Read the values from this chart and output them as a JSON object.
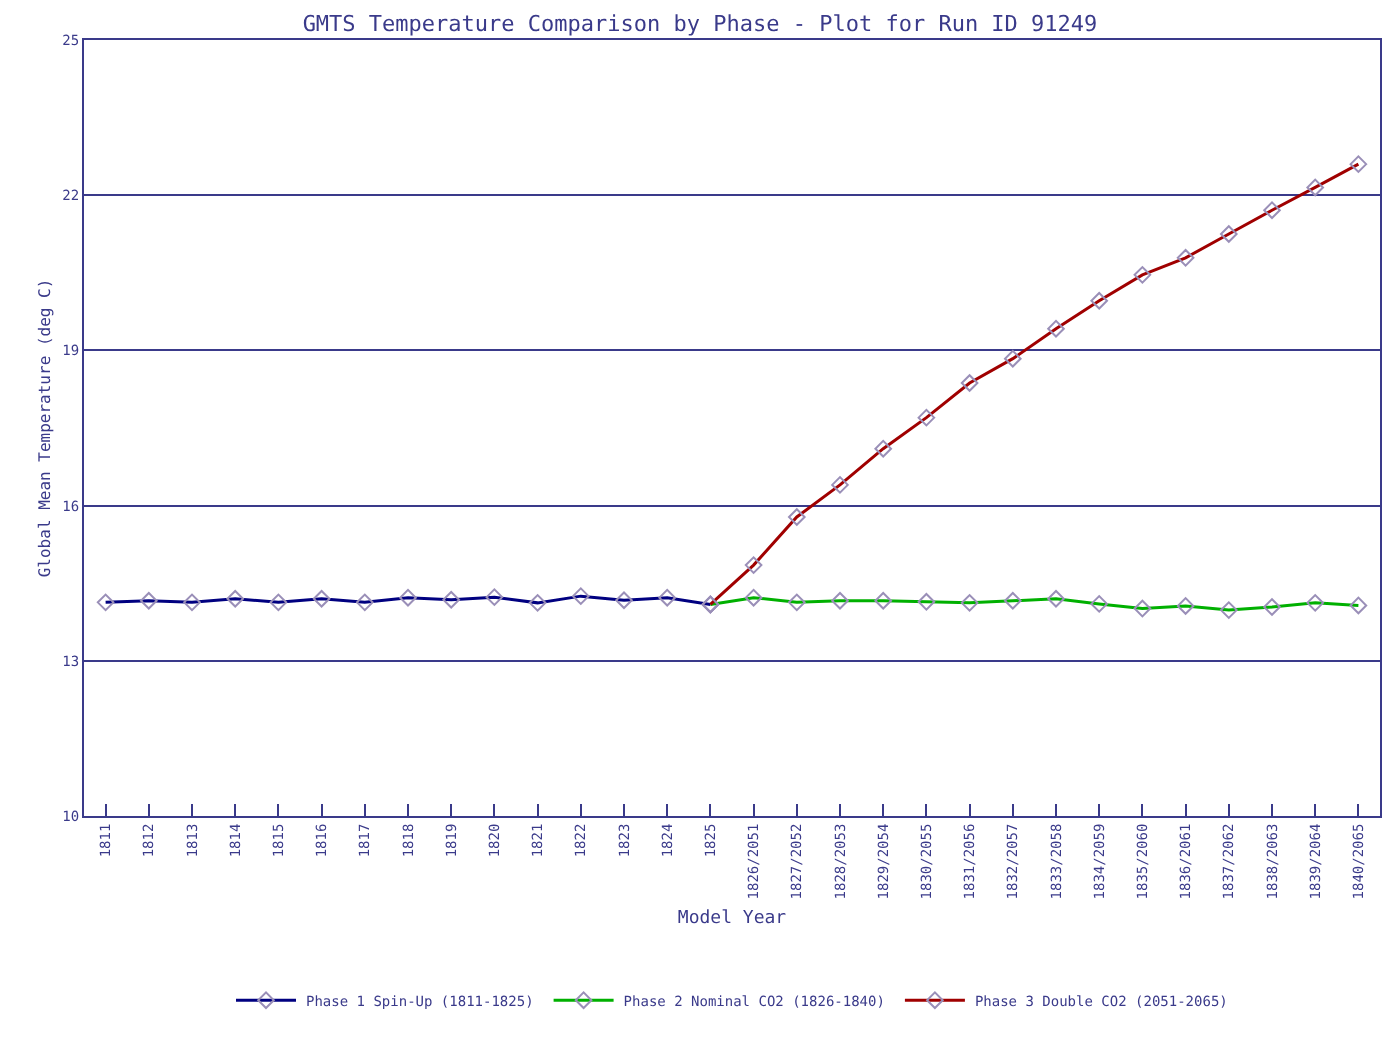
{
  "chart_data": {
    "type": "line",
    "title": "GMTS Temperature Comparison by Phase - Plot for Run ID 91249",
    "xlabel": "Model Year",
    "ylabel": "Global Mean Temperature (deg C)",
    "categories": [
      "1811",
      "1812",
      "1813",
      "1814",
      "1815",
      "1816",
      "1817",
      "1818",
      "1819",
      "1820",
      "1821",
      "1822",
      "1823",
      "1824",
      "1825",
      "1826/2051",
      "1827/2052",
      "1828/2053",
      "1829/2054",
      "1830/2055",
      "1831/2056",
      "1832/2057",
      "1833/2058",
      "1834/2059",
      "1835/2060",
      "1836/2061",
      "1837/2062",
      "1838/2063",
      "1839/2064",
      "1840/2065"
    ],
    "series": [
      {
        "name": "Phase 1 Spin-Up (1811-1825)",
        "color": "#000080",
        "values": [
          14.13,
          14.16,
          14.13,
          14.2,
          14.13,
          14.2,
          14.13,
          14.22,
          14.18,
          14.23,
          14.12,
          14.25,
          14.17,
          14.22,
          14.09,
          null,
          null,
          null,
          null,
          null,
          null,
          null,
          null,
          null,
          null,
          null,
          null,
          null,
          null,
          null
        ]
      },
      {
        "name": "Phase 2 Nominal CO2 (1826-1840)",
        "color": "#00b000",
        "values": [
          null,
          null,
          null,
          null,
          null,
          null,
          null,
          null,
          null,
          null,
          null,
          null,
          null,
          null,
          14.09,
          14.22,
          14.13,
          14.16,
          14.16,
          14.14,
          14.12,
          14.16,
          14.2,
          14.1,
          14.01,
          14.06,
          13.98,
          14.04,
          14.12,
          14.07
        ]
      },
      {
        "name": "Phase 3 Double CO2 (2051-2065)",
        "color": "#a00000",
        "values": [
          null,
          null,
          null,
          null,
          null,
          null,
          null,
          null,
          null,
          null,
          null,
          null,
          null,
          null,
          14.09,
          14.85,
          15.78,
          16.4,
          17.1,
          17.7,
          18.37,
          18.84,
          19.42,
          19.96,
          20.46,
          20.79,
          21.25,
          21.71,
          22.15,
          22.6
        ]
      }
    ],
    "ylim": [
      10,
      25
    ],
    "yticks": [
      10,
      13,
      16,
      19,
      22,
      25
    ],
    "grid": "y",
    "legend": "bottom",
    "marker": "diamond",
    "line_style": "solid"
  }
}
